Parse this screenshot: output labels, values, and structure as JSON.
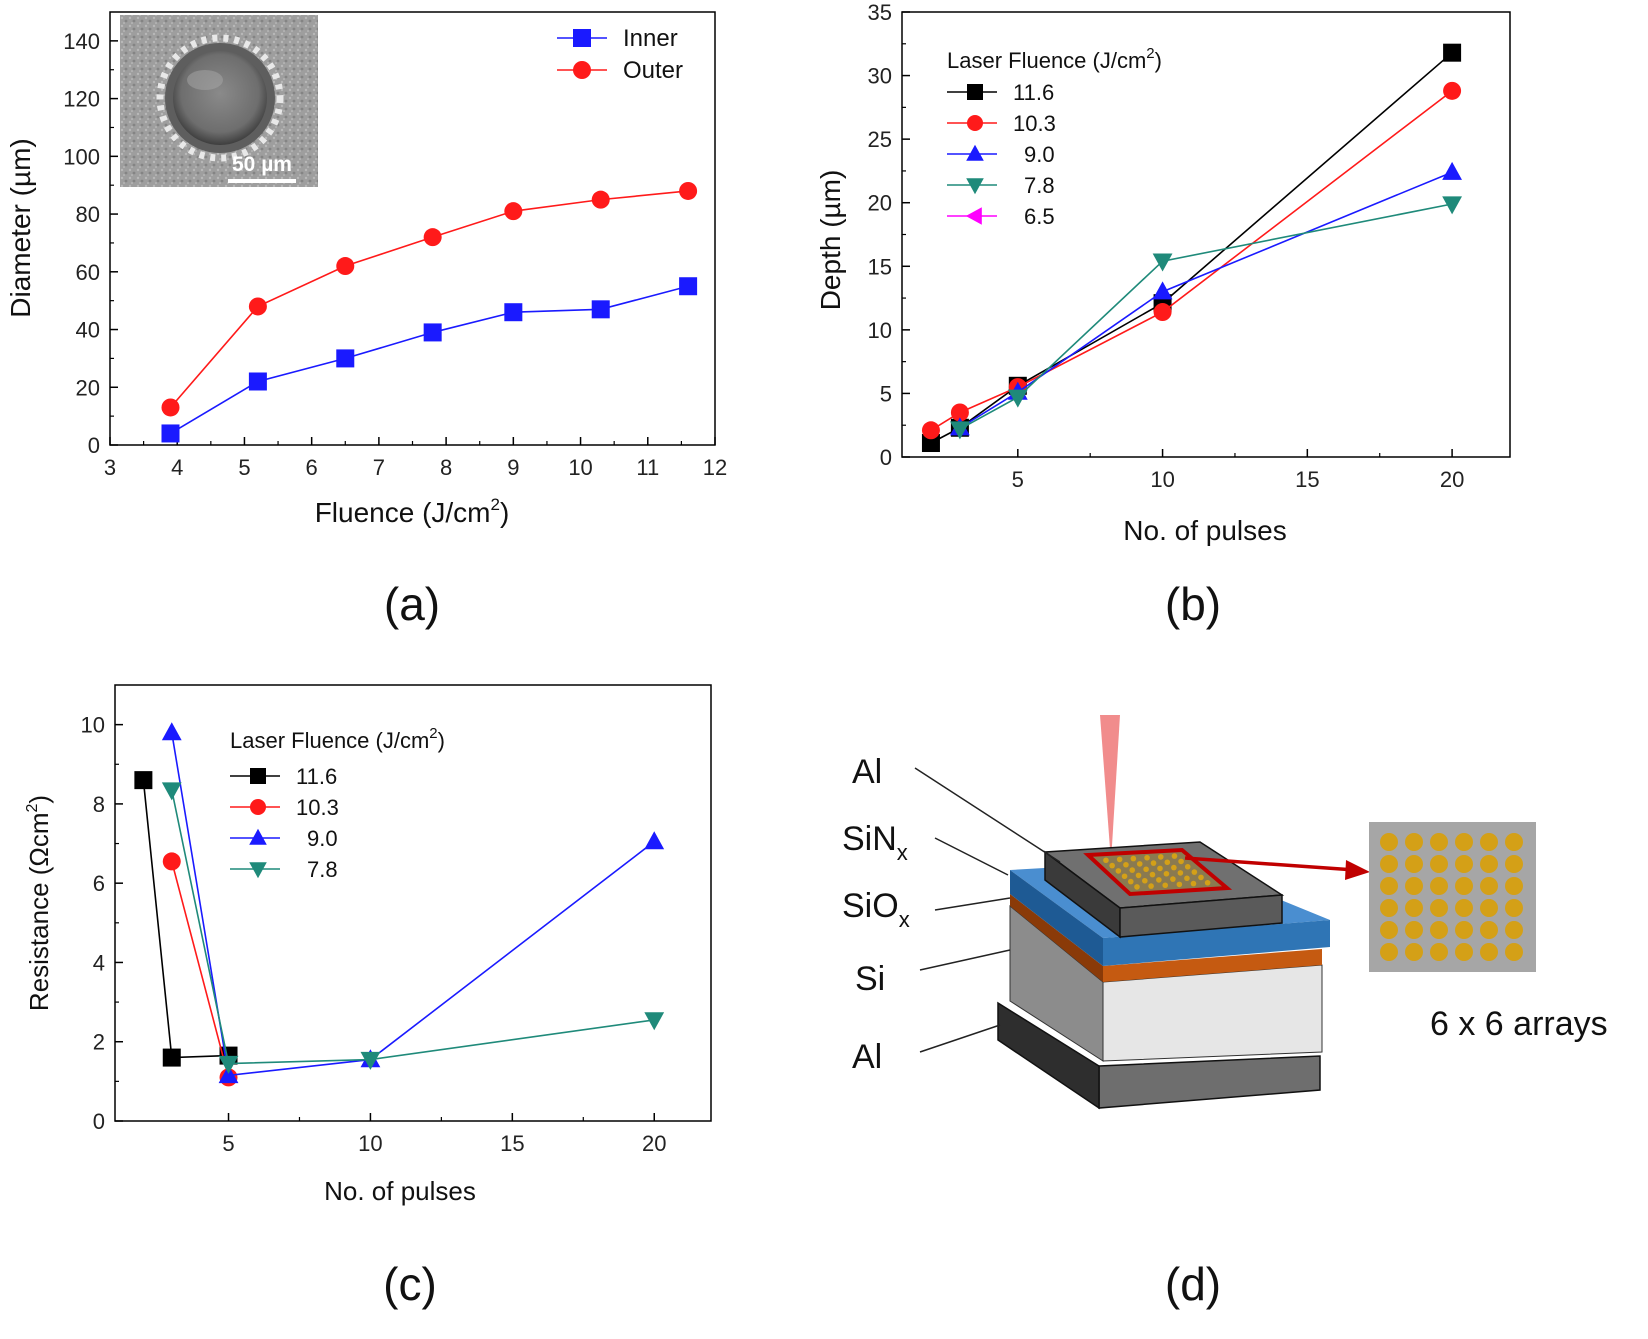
{
  "colors": {
    "black": "#000000",
    "red": "#ff1a1a",
    "blue": "#1a1aff",
    "teal": "#1f8a7a",
    "magenta": "#ff00ff",
    "al_layer": "#5a5a5a",
    "sin_layer": "#2f75b5",
    "sio_layer": "#c55a11",
    "si_layer": "#d9d9d9",
    "dots": "#d4a017",
    "window": "#c00000"
  },
  "panels": {
    "a": {
      "label": "(a)"
    },
    "b": {
      "label": "(b)"
    },
    "c": {
      "label": "(c)"
    },
    "d": {
      "label": "(d)"
    }
  },
  "chart_data": [
    {
      "id": "a",
      "type": "line",
      "xlabel": "Fluence (J/cm",
      "xlabel_sup": "2",
      "xlabel_tail": ")",
      "ylabel": "Diameter (µm)",
      "xlim": [
        3,
        12
      ],
      "ylim": [
        0,
        150
      ],
      "xticks": [
        3,
        4,
        5,
        6,
        7,
        8,
        9,
        10,
        11,
        12
      ],
      "yticks": [
        0,
        20,
        40,
        60,
        80,
        100,
        120,
        140
      ],
      "legend_position": "top-right",
      "inset": {
        "scale_bar_label": "50 µm"
      },
      "series": [
        {
          "name": "Inner",
          "color": "#1a1aff",
          "marker": "square",
          "x": [
            3.9,
            5.2,
            6.5,
            7.8,
            9.0,
            10.3,
            11.6
          ],
          "y": [
            4,
            22,
            30,
            39,
            46,
            47,
            55
          ]
        },
        {
          "name": "Outer",
          "color": "#ff1a1a",
          "marker": "circle",
          "x": [
            3.9,
            5.2,
            6.5,
            7.8,
            9.0,
            10.3,
            11.6
          ],
          "y": [
            13,
            48,
            62,
            72,
            81,
            85,
            88
          ]
        }
      ]
    },
    {
      "id": "b",
      "type": "line",
      "xlabel": "No. of pulses",
      "ylabel": "Depth (µm)",
      "xlim": [
        1,
        22
      ],
      "ylim": [
        0,
        35
      ],
      "xticks": [
        5,
        10,
        15,
        20
      ],
      "yticks": [
        0,
        5,
        10,
        15,
        20,
        25,
        30,
        35
      ],
      "legend_title": "Laser Fluence (J/cm",
      "legend_title_sup": "2",
      "legend_title_tail": ")",
      "legend_position": "top-left",
      "series": [
        {
          "name": "11.6",
          "color": "#000000",
          "marker": "square",
          "x": [
            2,
            3,
            5,
            10,
            20
          ],
          "y": [
            1.1,
            2.3,
            5.6,
            12.1,
            31.8
          ]
        },
        {
          "name": "10.3",
          "color": "#ff1a1a",
          "marker": "circle",
          "x": [
            2,
            3,
            5,
            10,
            20
          ],
          "y": [
            2.1,
            3.5,
            5.5,
            11.4,
            28.8
          ]
        },
        {
          "name": "9.0",
          "color": "#1a1aff",
          "marker": "triangle-up",
          "x": [
            3,
            5,
            10,
            20
          ],
          "y": [
            2.3,
            5.1,
            13.0,
            22.4
          ]
        },
        {
          "name": "7.8",
          "color": "#1f8a7a",
          "marker": "triangle-down",
          "x": [
            3,
            5,
            10,
            20
          ],
          "y": [
            2.2,
            4.7,
            15.4,
            19.9
          ]
        },
        {
          "name": "6.5",
          "color": "#ff00ff",
          "marker": "triangle-left",
          "x": [],
          "y": []
        }
      ]
    },
    {
      "id": "c",
      "type": "line",
      "xlabel": "No. of pulses",
      "ylabel": "Resistance (Ωcm",
      "ylabel_sup": "2",
      "ylabel_tail": ")",
      "xlim": [
        1,
        22
      ],
      "ylim": [
        0,
        11
      ],
      "xticks": [
        5,
        10,
        15,
        20
      ],
      "yticks": [
        0,
        2,
        4,
        6,
        8,
        10
      ],
      "legend_title": "Laser Fluence (J/cm",
      "legend_title_sup": "2",
      "legend_title_tail": ")",
      "legend_position": "top-left",
      "series": [
        {
          "name": "11.6",
          "color": "#000000",
          "marker": "square",
          "x": [
            2,
            3,
            5
          ],
          "y": [
            8.6,
            1.6,
            1.65
          ]
        },
        {
          "name": "10.3",
          "color": "#ff1a1a",
          "marker": "circle",
          "x": [
            3,
            5
          ],
          "y": [
            6.55,
            1.1
          ]
        },
        {
          "name": "9.0",
          "color": "#1a1aff",
          "marker": "triangle-up",
          "x": [
            3,
            5,
            10,
            20
          ],
          "y": [
            9.8,
            1.15,
            1.55,
            7.05
          ]
        },
        {
          "name": "7.8",
          "color": "#1f8a7a",
          "marker": "triangle-down",
          "x": [
            3,
            5,
            10,
            20
          ],
          "y": [
            8.35,
            1.45,
            1.55,
            2.55
          ]
        }
      ]
    }
  ],
  "diagram": {
    "labels": {
      "al_top": "Al",
      "sin": "SiN",
      "sin_sub": "x",
      "sio": "SiO",
      "sio_sub": "x",
      "si": "Si",
      "al_bottom": "Al",
      "arrays": "6 x 6 arrays"
    }
  }
}
